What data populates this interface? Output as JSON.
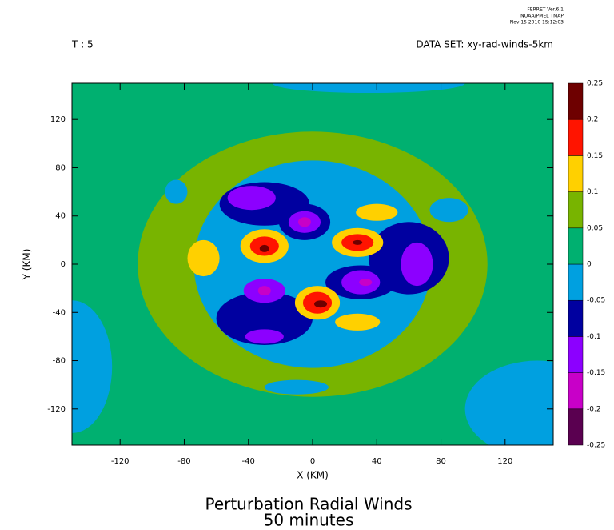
{
  "chart_data": {
    "type": "contour",
    "title": "Perturbation Radial Winds",
    "subtitle": "50 minutes",
    "header_left": "T : 5",
    "header_right": "DATA SET: xy-rad-winds-5km",
    "stamp": [
      "FERRET Ver.6.1",
      "NOAA/PMEL TMAP",
      "Nov 15 2010 15:12:03"
    ],
    "xlabel": "X (KM)",
    "ylabel": "Y (KM)",
    "xlim": [
      -150,
      150
    ],
    "ylim": [
      -150,
      150
    ],
    "xticks": [
      -120,
      -80,
      -40,
      0,
      40,
      80,
      120
    ],
    "yticks": [
      -120,
      -80,
      -40,
      0,
      40,
      80,
      120
    ],
    "background": 0.02,
    "levels": [
      -0.25,
      -0.2,
      -0.15,
      -0.1,
      -0.05,
      0,
      0.05,
      0.1,
      0.15,
      0.2,
      0.25
    ],
    "colors": [
      "#5a0050",
      "#c800c8",
      "#8c00ff",
      "#0000a0",
      "#00a0e0",
      "#00b070",
      "#78b400",
      "#ffd000",
      "#ff1400",
      "#6e0000"
    ],
    "blobs": [
      {
        "value": 0.07,
        "x": 0,
        "y": 0,
        "rx": 109,
        "ry": 110
      },
      {
        "value": -0.02,
        "x": 0,
        "y": 0,
        "rx": 74,
        "ry": 86
      },
      {
        "value": -0.02,
        "x": -150,
        "y": -85,
        "rx": 25,
        "ry": 55
      },
      {
        "value": -0.02,
        "x": 140,
        "y": -120,
        "rx": 45,
        "ry": 40
      },
      {
        "value": -0.02,
        "x": 35,
        "y": 150,
        "rx": 60,
        "ry": 8
      },
      {
        "value": 0.12,
        "x": -68,
        "y": 5,
        "rx": 10,
        "ry": 15
      },
      {
        "value": 0.12,
        "x": 40,
        "y": 43,
        "rx": 13,
        "ry": 7
      },
      {
        "value": 0.12,
        "x": 28,
        "y": -48,
        "rx": 14,
        "ry": 7
      },
      {
        "value": -0.02,
        "x": -85,
        "y": 60,
        "rx": 7,
        "ry": 10
      },
      {
        "value": -0.02,
        "x": 85,
        "y": 45,
        "rx": 12,
        "ry": 10
      },
      {
        "value": -0.02,
        "x": -10,
        "y": -102,
        "rx": 20,
        "ry": 6
      },
      {
        "value": -0.07,
        "x": -30,
        "y": 50,
        "rx": 28,
        "ry": 18
      },
      {
        "value": -0.07,
        "x": -30,
        "y": -45,
        "rx": 30,
        "ry": 22
      },
      {
        "value": -0.07,
        "x": 60,
        "y": 5,
        "rx": 25,
        "ry": 30
      },
      {
        "value": -0.07,
        "x": -5,
        "y": 35,
        "rx": 16,
        "ry": 15
      },
      {
        "value": -0.07,
        "x": 30,
        "y": -15,
        "rx": 22,
        "ry": 14
      },
      {
        "value": -0.12,
        "x": -38,
        "y": 55,
        "rx": 15,
        "ry": 10
      },
      {
        "value": -0.12,
        "x": -5,
        "y": 35,
        "rx": 10,
        "ry": 9
      },
      {
        "value": -0.12,
        "x": -30,
        "y": -22,
        "rx": 13,
        "ry": 10
      },
      {
        "value": -0.12,
        "x": -30,
        "y": -60,
        "rx": 12,
        "ry": 6
      },
      {
        "value": -0.12,
        "x": 30,
        "y": -15,
        "rx": 12,
        "ry": 10
      },
      {
        "value": -0.12,
        "x": 65,
        "y": 0,
        "rx": 10,
        "ry": 18
      },
      {
        "value": -0.17,
        "x": -5,
        "y": 35,
        "rx": 4,
        "ry": 4
      },
      {
        "value": -0.17,
        "x": -30,
        "y": -22,
        "rx": 4,
        "ry": 4
      },
      {
        "value": -0.17,
        "x": 33,
        "y": -15,
        "rx": 4,
        "ry": 3
      },
      {
        "value": 0.12,
        "x": -30,
        "y": 15,
        "rx": 15,
        "ry": 14
      },
      {
        "value": 0.12,
        "x": 28,
        "y": 18,
        "rx": 16,
        "ry": 12
      },
      {
        "value": 0.12,
        "x": 3,
        "y": -32,
        "rx": 14,
        "ry": 14
      },
      {
        "value": 0.17,
        "x": -30,
        "y": 15,
        "rx": 9,
        "ry": 8
      },
      {
        "value": 0.17,
        "x": 28,
        "y": 18,
        "rx": 10,
        "ry": 7
      },
      {
        "value": 0.17,
        "x": 3,
        "y": -32,
        "rx": 9,
        "ry": 9
      },
      {
        "value": 0.22,
        "x": -30,
        "y": 13,
        "rx": 3,
        "ry": 3
      },
      {
        "value": 0.22,
        "x": 28,
        "y": 18,
        "rx": 3,
        "ry": 2
      },
      {
        "value": 0.22,
        "x": 5,
        "y": -33,
        "rx": 4,
        "ry": 3
      }
    ]
  }
}
